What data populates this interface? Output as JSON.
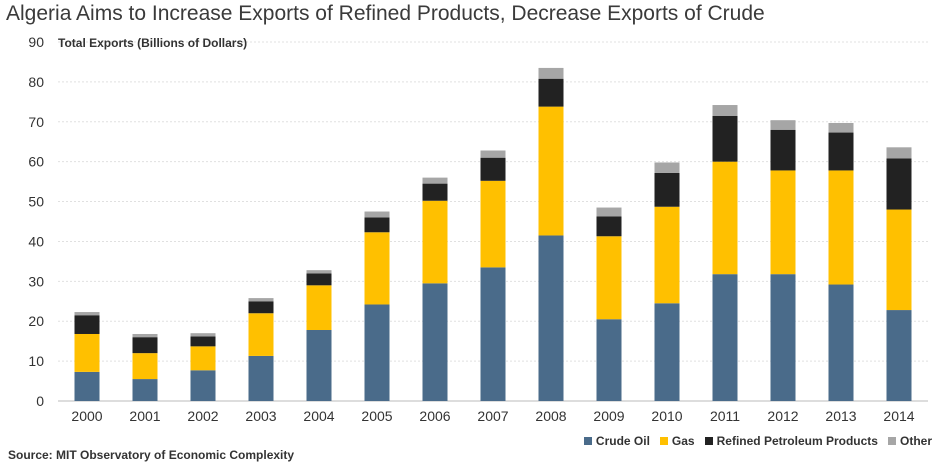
{
  "title": "Algeria Aims to Increase Exports of Refined Products, Decrease Exports of Crude",
  "source": "Source: MIT Observatory of Economic Complexity",
  "chart_data": {
    "type": "bar",
    "stacked": true,
    "ylabel": "Total Exports (Billions of Dollars)",
    "xlabel": "",
    "ylim": [
      0,
      90
    ],
    "yticks": [
      0,
      10,
      20,
      30,
      40,
      50,
      60,
      70,
      80,
      90
    ],
    "grid": true,
    "legend_position": "bottom-right",
    "categories": [
      "2000",
      "2001",
      "2002",
      "2003",
      "2004",
      "2005",
      "2006",
      "2007",
      "2008",
      "2009",
      "2010",
      "2011",
      "2012",
      "2013",
      "2014"
    ],
    "series": [
      {
        "name": "Crude Oil",
        "color": "#4a6b8a",
        "values": [
          7.3,
          5.5,
          7.7,
          11.3,
          17.8,
          24.2,
          29.5,
          33.5,
          41.5,
          20.5,
          24.5,
          31.8,
          31.8,
          29.2,
          22.8
        ]
      },
      {
        "name": "Gas",
        "color": "#ffc000",
        "values": [
          9.5,
          6.5,
          6.0,
          10.7,
          11.2,
          18.1,
          20.7,
          21.7,
          32.3,
          20.8,
          24.2,
          28.2,
          26.0,
          28.6,
          25.2
        ]
      },
      {
        "name": "Refined Petroleum Products",
        "color": "#222222",
        "values": [
          4.7,
          4.0,
          2.5,
          3.0,
          3.0,
          3.7,
          4.3,
          5.8,
          7.0,
          5.0,
          8.5,
          11.5,
          10.2,
          9.5,
          12.8
        ]
      },
      {
        "name": "Other",
        "color": "#a6a6a6",
        "values": [
          0.8,
          0.8,
          0.8,
          0.8,
          0.8,
          1.5,
          1.5,
          1.8,
          2.7,
          2.2,
          2.6,
          2.7,
          2.4,
          2.4,
          2.8
        ]
      }
    ]
  }
}
